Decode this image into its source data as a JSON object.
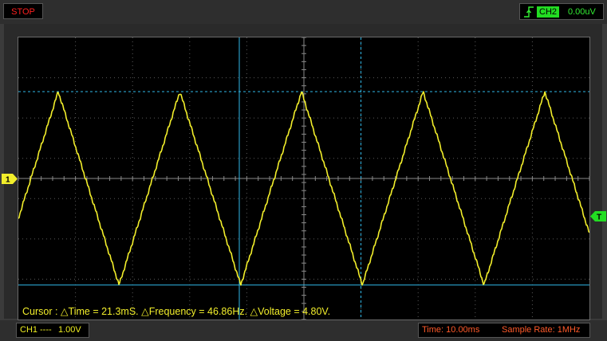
{
  "toolbar": {
    "stop_label": "STOP",
    "trigger_channel": "CH2",
    "trigger_level": "0.00uV"
  },
  "markers": {
    "ch1_label": "1",
    "trigger_label": "T"
  },
  "cursor": {
    "readout": "Cursor : △Time = 21.3mS. △Frequency = 46.86Hz. △Voltage = 4.80V."
  },
  "status": {
    "ch1_name": "CH1",
    "ch1_coupling": "----",
    "ch1_volts_per_div": "1.00V",
    "time_per_div": "Time: 10.00ms",
    "sample_rate": "Sample Rate: 1MHz"
  },
  "colors": {
    "trace": "#f2ee2b",
    "cursor": "#2fb8e8",
    "stop": "#ff2020",
    "trigger": "#22dd22",
    "grid": "#5a5a5a",
    "status": "#ff5a2a"
  },
  "chart_data": {
    "type": "line",
    "series": [
      {
        "name": "CH1",
        "waveform": "triangle",
        "period_ms": 21.3,
        "frequency_hz": 46.86,
        "peak_to_peak_v": 4.8,
        "volts_per_div": 1.0,
        "time_per_div_ms": 10.0
      }
    ]
  }
}
